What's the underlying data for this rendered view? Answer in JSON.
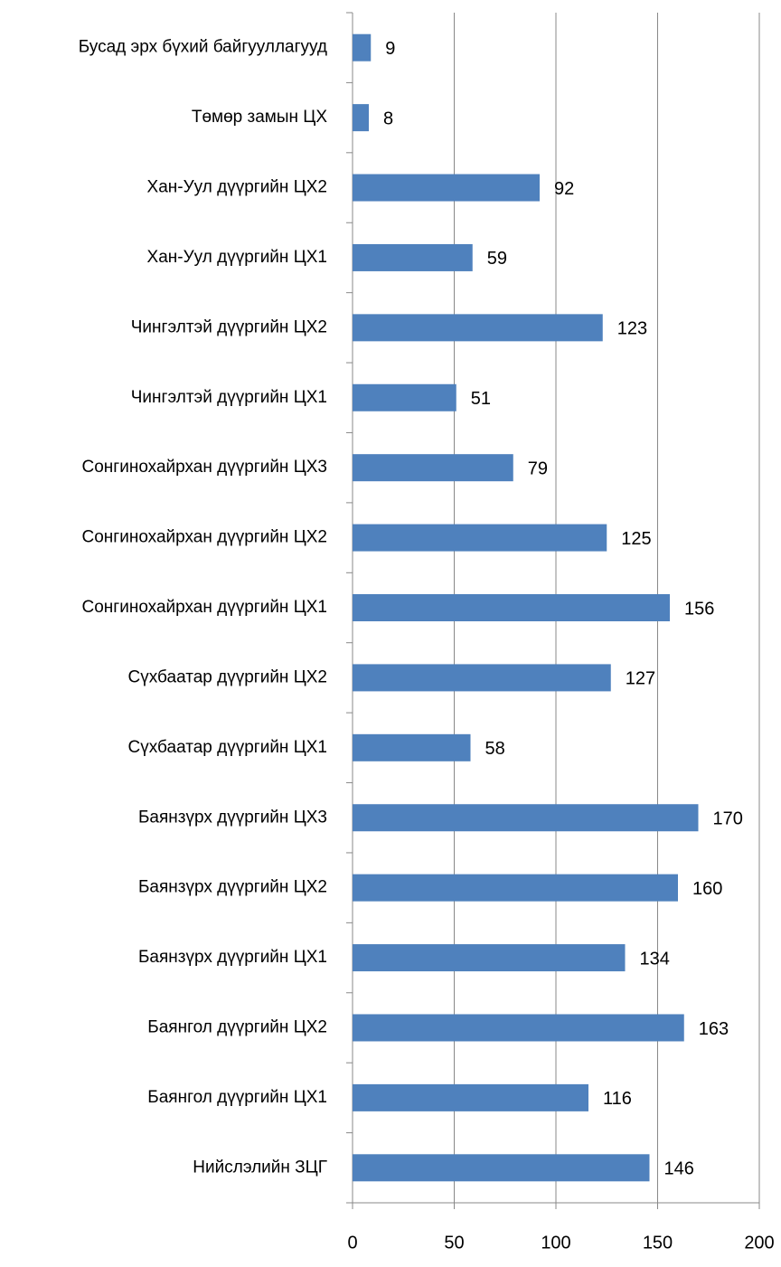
{
  "chart_data": {
    "type": "barh",
    "categories": [
      "Бусад эрх бүхий байгууллагууд",
      "Төмөр замын ЦХ",
      "Хан-Уул дүүргийн ЦХ2",
      "Хан-Уул дүүргийн ЦХ1",
      "Чингэлтэй дүүргийн  ЦХ2",
      "Чингэлтэй дүүргийн  ЦХ1",
      "Сонгинохайрхан  дүүргийн ЦХ3",
      "Сонгинохайрхан  дүүргийн ЦХ2",
      "Сонгинохайрхан  дүүргийн ЦХ1",
      "Сүхбаатар дүүргийн ЦХ2",
      "Сүхбаатар дүүргийн ЦХ1",
      "Баянзүрх дүүргийн ЦХ3",
      "Баянзүрх дүүргийн ЦХ2",
      "Баянзүрх дүүргийн ЦХ1",
      "Баянгол дүүргийн ЦХ2",
      "Баянгол дүүргийн ЦХ1",
      "Нийслэлийн ЗЦГ"
    ],
    "values": [
      9,
      8,
      92,
      59,
      123,
      51,
      79,
      125,
      156,
      127,
      58,
      170,
      160,
      134,
      163,
      116,
      146
    ],
    "color": "#4f81bd",
    "xlim": [
      0,
      200
    ],
    "xticks": [
      0,
      50,
      100,
      150,
      200
    ],
    "grid": true
  }
}
